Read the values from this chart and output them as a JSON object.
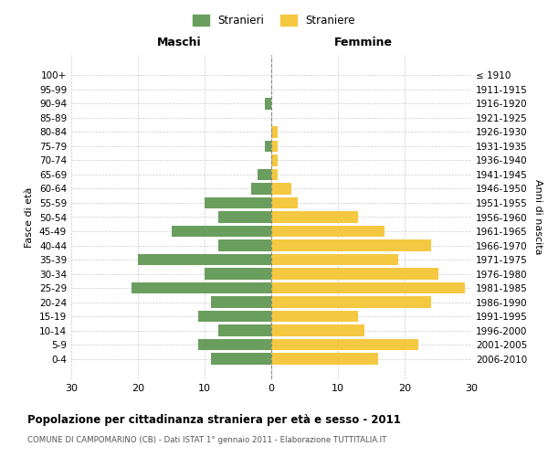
{
  "age_groups": [
    "100+",
    "95-99",
    "90-94",
    "85-89",
    "80-84",
    "75-79",
    "70-74",
    "65-69",
    "60-64",
    "55-59",
    "50-54",
    "45-49",
    "40-44",
    "35-39",
    "30-34",
    "25-29",
    "20-24",
    "15-19",
    "10-14",
    "5-9",
    "0-4"
  ],
  "birth_years": [
    "≤ 1910",
    "1911-1915",
    "1916-1920",
    "1921-1925",
    "1926-1930",
    "1931-1935",
    "1936-1940",
    "1941-1945",
    "1946-1950",
    "1951-1955",
    "1956-1960",
    "1961-1965",
    "1966-1970",
    "1971-1975",
    "1976-1980",
    "1981-1985",
    "1986-1990",
    "1991-1995",
    "1996-2000",
    "2001-2005",
    "2006-2010"
  ],
  "males": [
    0,
    0,
    1,
    0,
    0,
    1,
    0,
    2,
    3,
    10,
    8,
    15,
    8,
    20,
    10,
    21,
    9,
    11,
    8,
    11,
    9
  ],
  "females": [
    0,
    0,
    0,
    0,
    1,
    1,
    1,
    1,
    3,
    4,
    13,
    17,
    24,
    19,
    25,
    29,
    24,
    13,
    14,
    22,
    16
  ],
  "male_color": "#6a9e5e",
  "female_color": "#f5c842",
  "background_color": "#ffffff",
  "grid_color": "#cccccc",
  "title": "Popolazione per cittadinanza straniera per età e sesso - 2011",
  "subtitle": "COMUNE DI CAMPOMARINO (CB) - Dati ISTAT 1° gennaio 2011 - Elaborazione TUTTITALIA.IT",
  "xlabel_left": "Maschi",
  "xlabel_right": "Femmine",
  "ylabel_left": "Fasce di età",
  "ylabel_right": "Anni di nascita",
  "legend_male": "Stranieri",
  "legend_female": "Straniere",
  "xlim": 30,
  "bar_height": 0.8
}
